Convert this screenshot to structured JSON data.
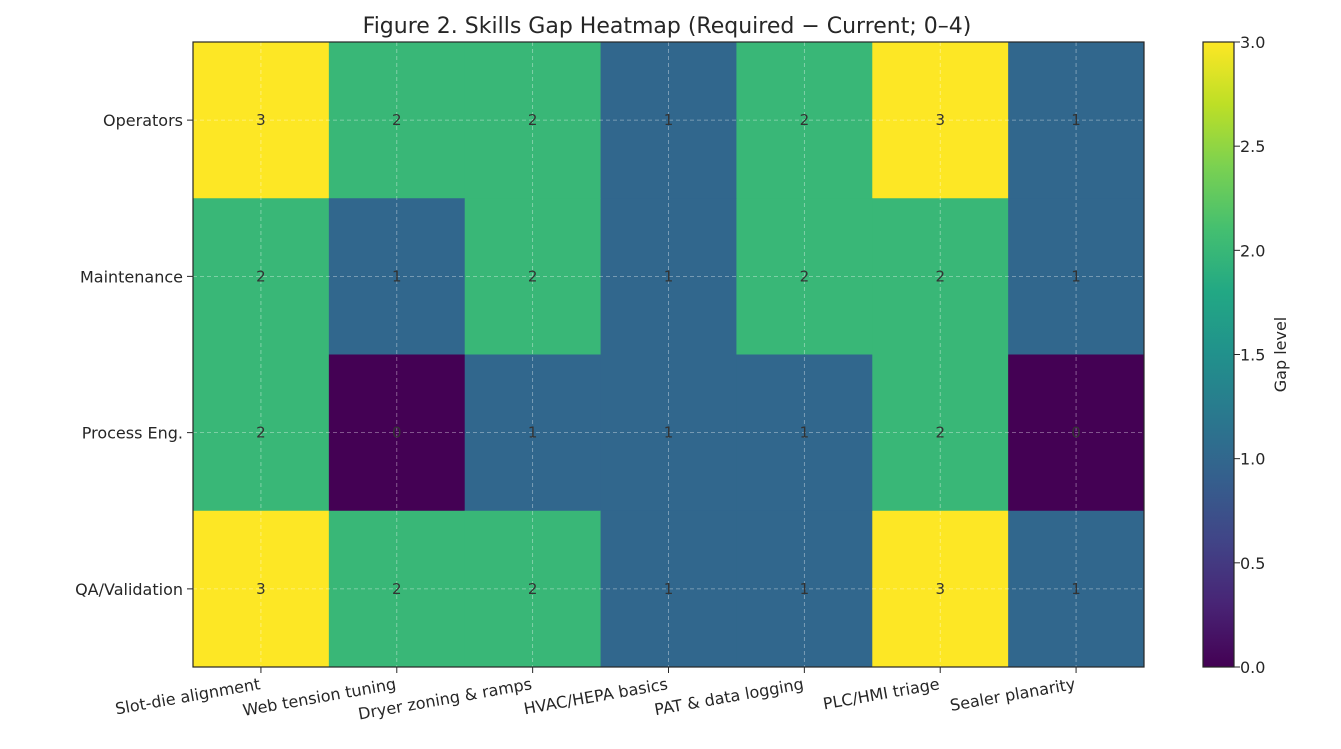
{
  "chart_data": {
    "type": "heatmap",
    "title": "Figure 2. Skills Gap Heatmap (Required − Current; 0–4)",
    "columns": [
      "Slot-die alignment",
      "Web tension tuning",
      "Dryer zoning & ramps",
      "HVAC/HEPA basics",
      "PAT & data logging",
      "PLC/HMI triage",
      "Sealer planarity"
    ],
    "rows": [
      "Operators",
      "Maintenance",
      "Process Eng.",
      "QA/Validation"
    ],
    "values": [
      [
        3,
        2,
        2,
        1,
        2,
        3,
        1
      ],
      [
        2,
        1,
        2,
        1,
        2,
        2,
        1
      ],
      [
        2,
        0,
        1,
        1,
        1,
        2,
        0
      ],
      [
        3,
        2,
        2,
        1,
        1,
        3,
        1
      ]
    ],
    "colorbar": {
      "label": "Gap level",
      "range": [
        0,
        3
      ],
      "ticks": [
        "0.0",
        "0.5",
        "1.0",
        "1.5",
        "2.0",
        "2.5",
        "3.0"
      ],
      "colormap": "viridis"
    },
    "grid": true
  }
}
